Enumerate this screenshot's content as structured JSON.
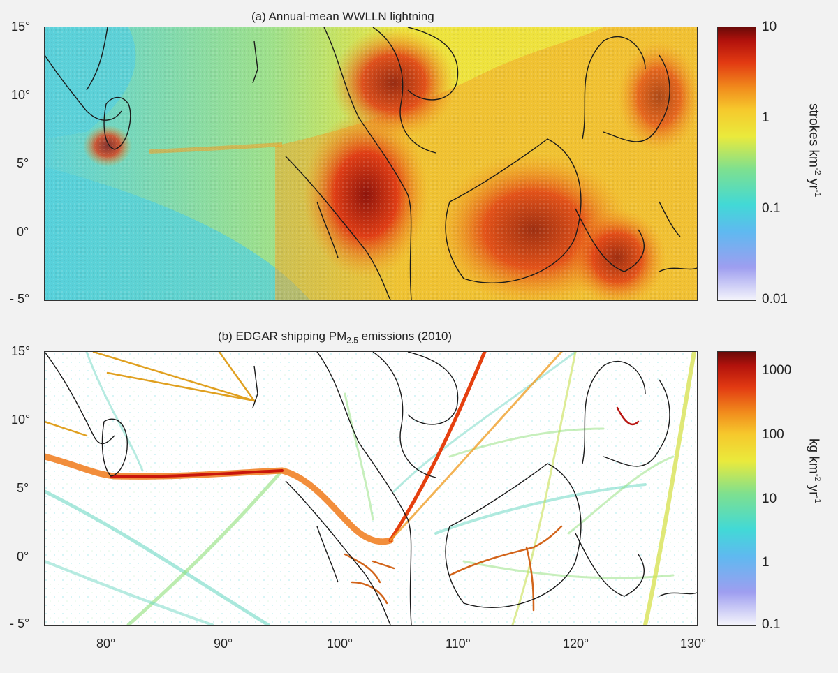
{
  "panels": [
    {
      "title": "(a) Annual-mean WWLLN lightning",
      "colorbar": {
        "ticks": [
          "10",
          "1",
          "0.1",
          "0.01"
        ],
        "label_html": "strokes km<sup>-2</sup> yr<sup>-1</sup>",
        "scale": "log",
        "range": [
          0.01,
          10
        ]
      },
      "y_ticks": [
        "15°",
        "10°",
        "5°",
        "0°",
        "- 5°"
      ]
    },
    {
      "title_html": "(b) EDGAR shipping PM<sub>2.5</sub> emissions (2010)",
      "colorbar": {
        "ticks": [
          "1000",
          "100",
          "10",
          "1",
          "0.1"
        ],
        "label_html": "kg km<sup>-2</sup> yr<sup>-1</sup>",
        "scale": "log",
        "range": [
          0.1,
          2000
        ]
      },
      "y_ticks": [
        "15°",
        "10°",
        "5°",
        "0°",
        "- 5°"
      ]
    }
  ],
  "x_ticks": [
    "80°",
    "90°",
    "100°",
    "110°",
    "120°",
    "130°"
  ],
  "map_extent": {
    "lon": [
      75,
      130
    ],
    "lat": [
      -5,
      15
    ]
  },
  "colors": {
    "colormap": [
      "#f4f4fb",
      "#9e9ef0",
      "#5fb9f0",
      "#42d9d6",
      "#7ee08f",
      "#eaea3c",
      "#f6c82c",
      "#f18a1c",
      "#e23a12",
      "#b2120c",
      "#6a0a08"
    ],
    "ocean_lightning_low": "#55d6d6",
    "ocean_lightning_mid": "#e6e23a",
    "land_lightning_high": "#e43c12"
  }
}
